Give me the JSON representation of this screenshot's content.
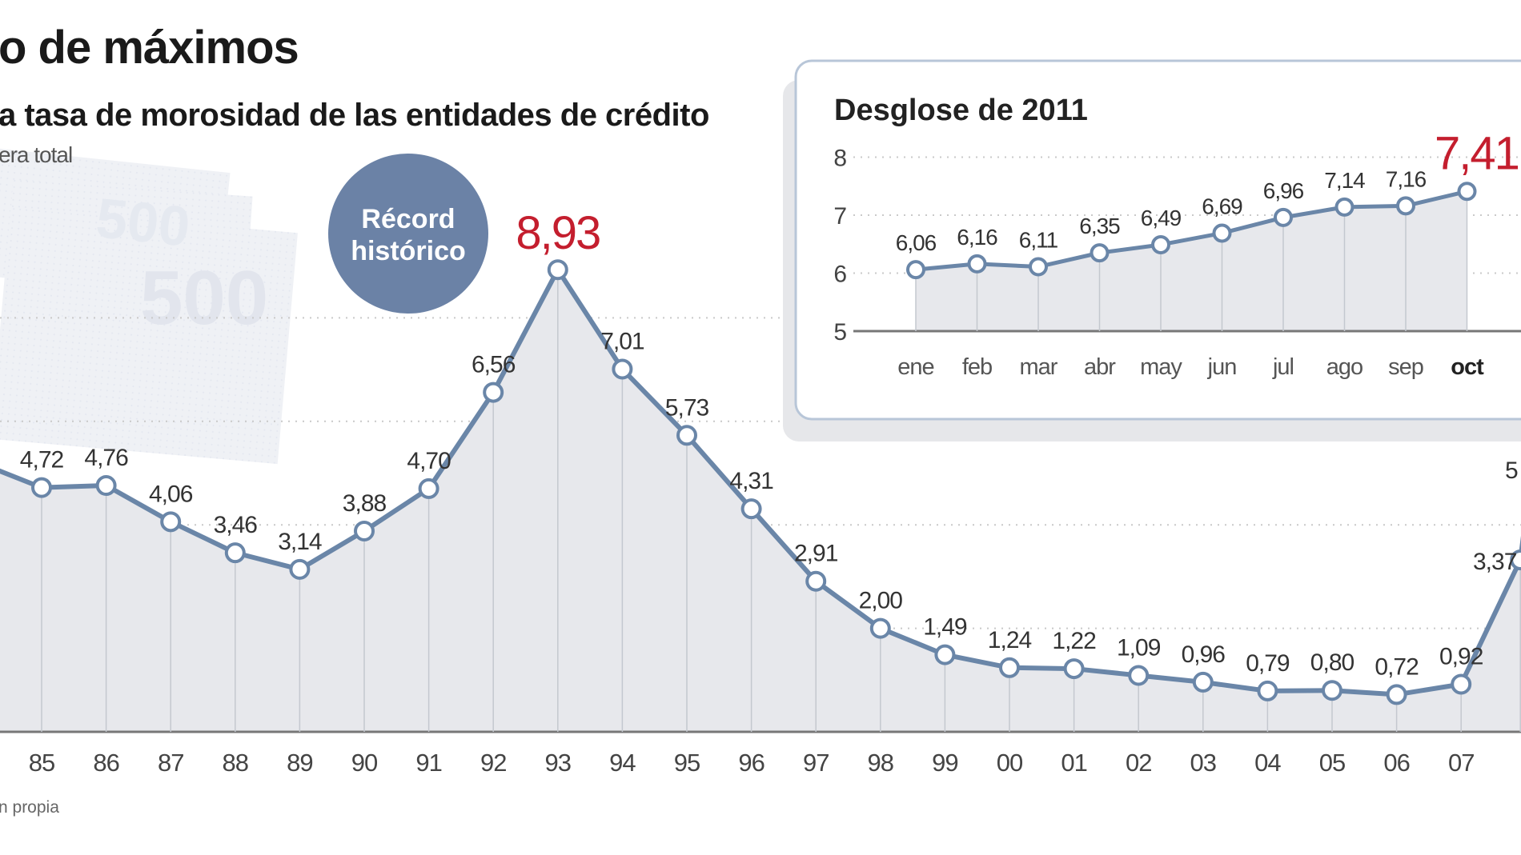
{
  "title": "o de máximos",
  "subtitle": "a tasa de morosidad de las entidades de crédito",
  "unit_note": "era total",
  "source": "n propia",
  "badge": {
    "line1": "Récord",
    "line2": "histórico"
  },
  "colors": {
    "line": "#6a86a8",
    "record": "#c41e2e",
    "badge": "#6b82a6",
    "area": "#e7e8ec",
    "axis": "#777777"
  },
  "chart_data": [
    {
      "type": "line",
      "title": "",
      "xlabel": "",
      "ylabel": "",
      "categories": [
        "85",
        "86",
        "87",
        "88",
        "89",
        "90",
        "91",
        "92",
        "93",
        "94",
        "95",
        "96",
        "97",
        "98",
        "99",
        "00",
        "01",
        "02",
        "03",
        "04",
        "05",
        "06",
        "07"
      ],
      "series": [
        {
          "values": [
            4.72,
            4.76,
            4.06,
            3.46,
            3.14,
            3.88,
            4.7,
            6.56,
            8.93,
            7.01,
            5.73,
            4.31,
            2.91,
            2.0,
            1.49,
            1.24,
            1.22,
            1.09,
            0.96,
            0.79,
            0.8,
            0.72,
            0.92
          ],
          "labels": [
            "4,72",
            "4,76",
            "4,06",
            "3,46",
            "3,14",
            "3,88",
            "4,70",
            "6,56",
            "8,93",
            "7,01",
            "5,73",
            "4,31",
            "2,91",
            "2,00",
            "1,49",
            "1,24",
            "1,22",
            "1,09",
            "0,96",
            "0,79",
            "0,80",
            "0,72",
            "0,92"
          ]
        }
      ],
      "partial_visible": {
        "label_08": "3,37",
        "label_next": "5"
      },
      "highlight": {
        "category": "93",
        "label": "8,93"
      },
      "ylim": [
        0,
        10
      ],
      "grid": true
    },
    {
      "type": "line",
      "title": "Desglose de 2011",
      "categories": [
        "ene",
        "feb",
        "mar",
        "abr",
        "may",
        "jun",
        "jul",
        "ago",
        "sep",
        "oct"
      ],
      "series": [
        {
          "values": [
            6.06,
            6.16,
            6.11,
            6.35,
            6.49,
            6.69,
            6.96,
            7.14,
            7.16,
            7.41
          ],
          "labels": [
            "6,06",
            "6,16",
            "6,11",
            "6,35",
            "6,49",
            "6,69",
            "6,96",
            "7,14",
            "7,16",
            "7,41"
          ]
        }
      ],
      "yticks": [
        "5",
        "6",
        "7",
        "8"
      ],
      "ylim": [
        5,
        8
      ],
      "highlight": {
        "category": "oct",
        "label": "7,41"
      },
      "grid": true
    }
  ]
}
